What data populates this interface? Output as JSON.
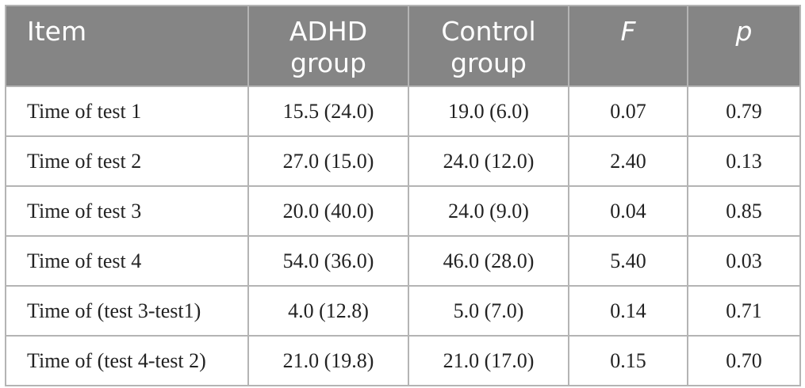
{
  "table": {
    "headers": [
      {
        "line1": "Item",
        "line2": ""
      },
      {
        "line1": "ADHD",
        "line2": "group"
      },
      {
        "line1": "Control",
        "line2": "group"
      },
      {
        "line1": "F",
        "line2": ""
      },
      {
        "line1": "p",
        "line2": ""
      }
    ],
    "rows": [
      [
        "Time of test 1",
        "15.5 (24.0)",
        "19.0 (6.0)",
        "0.07",
        "0.79"
      ],
      [
        "Time of test 2",
        "27.0 (15.0)",
        "24.0 (12.0)",
        "2.40",
        "0.13"
      ],
      [
        "Time of test 3",
        "20.0 (40.0)",
        "24.0 (9.0)",
        "0.04",
        "0.85"
      ],
      [
        "Time of test 4",
        "54.0 (36.0)",
        "46.0 (28.0)",
        "5.40",
        "0.03"
      ],
      [
        "Time of (test 3-test1)",
        "4.0 (12.8)",
        "5.0 (7.0)",
        "0.14",
        "0.71"
      ],
      [
        "Time of (test 4-test 2)",
        "21.0 (19.8)",
        "21.0 (17.0)",
        "0.15",
        "0.70"
      ]
    ]
  },
  "colors": {
    "header_bg": "#858585",
    "header_text": "#ffffff",
    "border": "#b4b4b4",
    "body_text": "#222222"
  }
}
